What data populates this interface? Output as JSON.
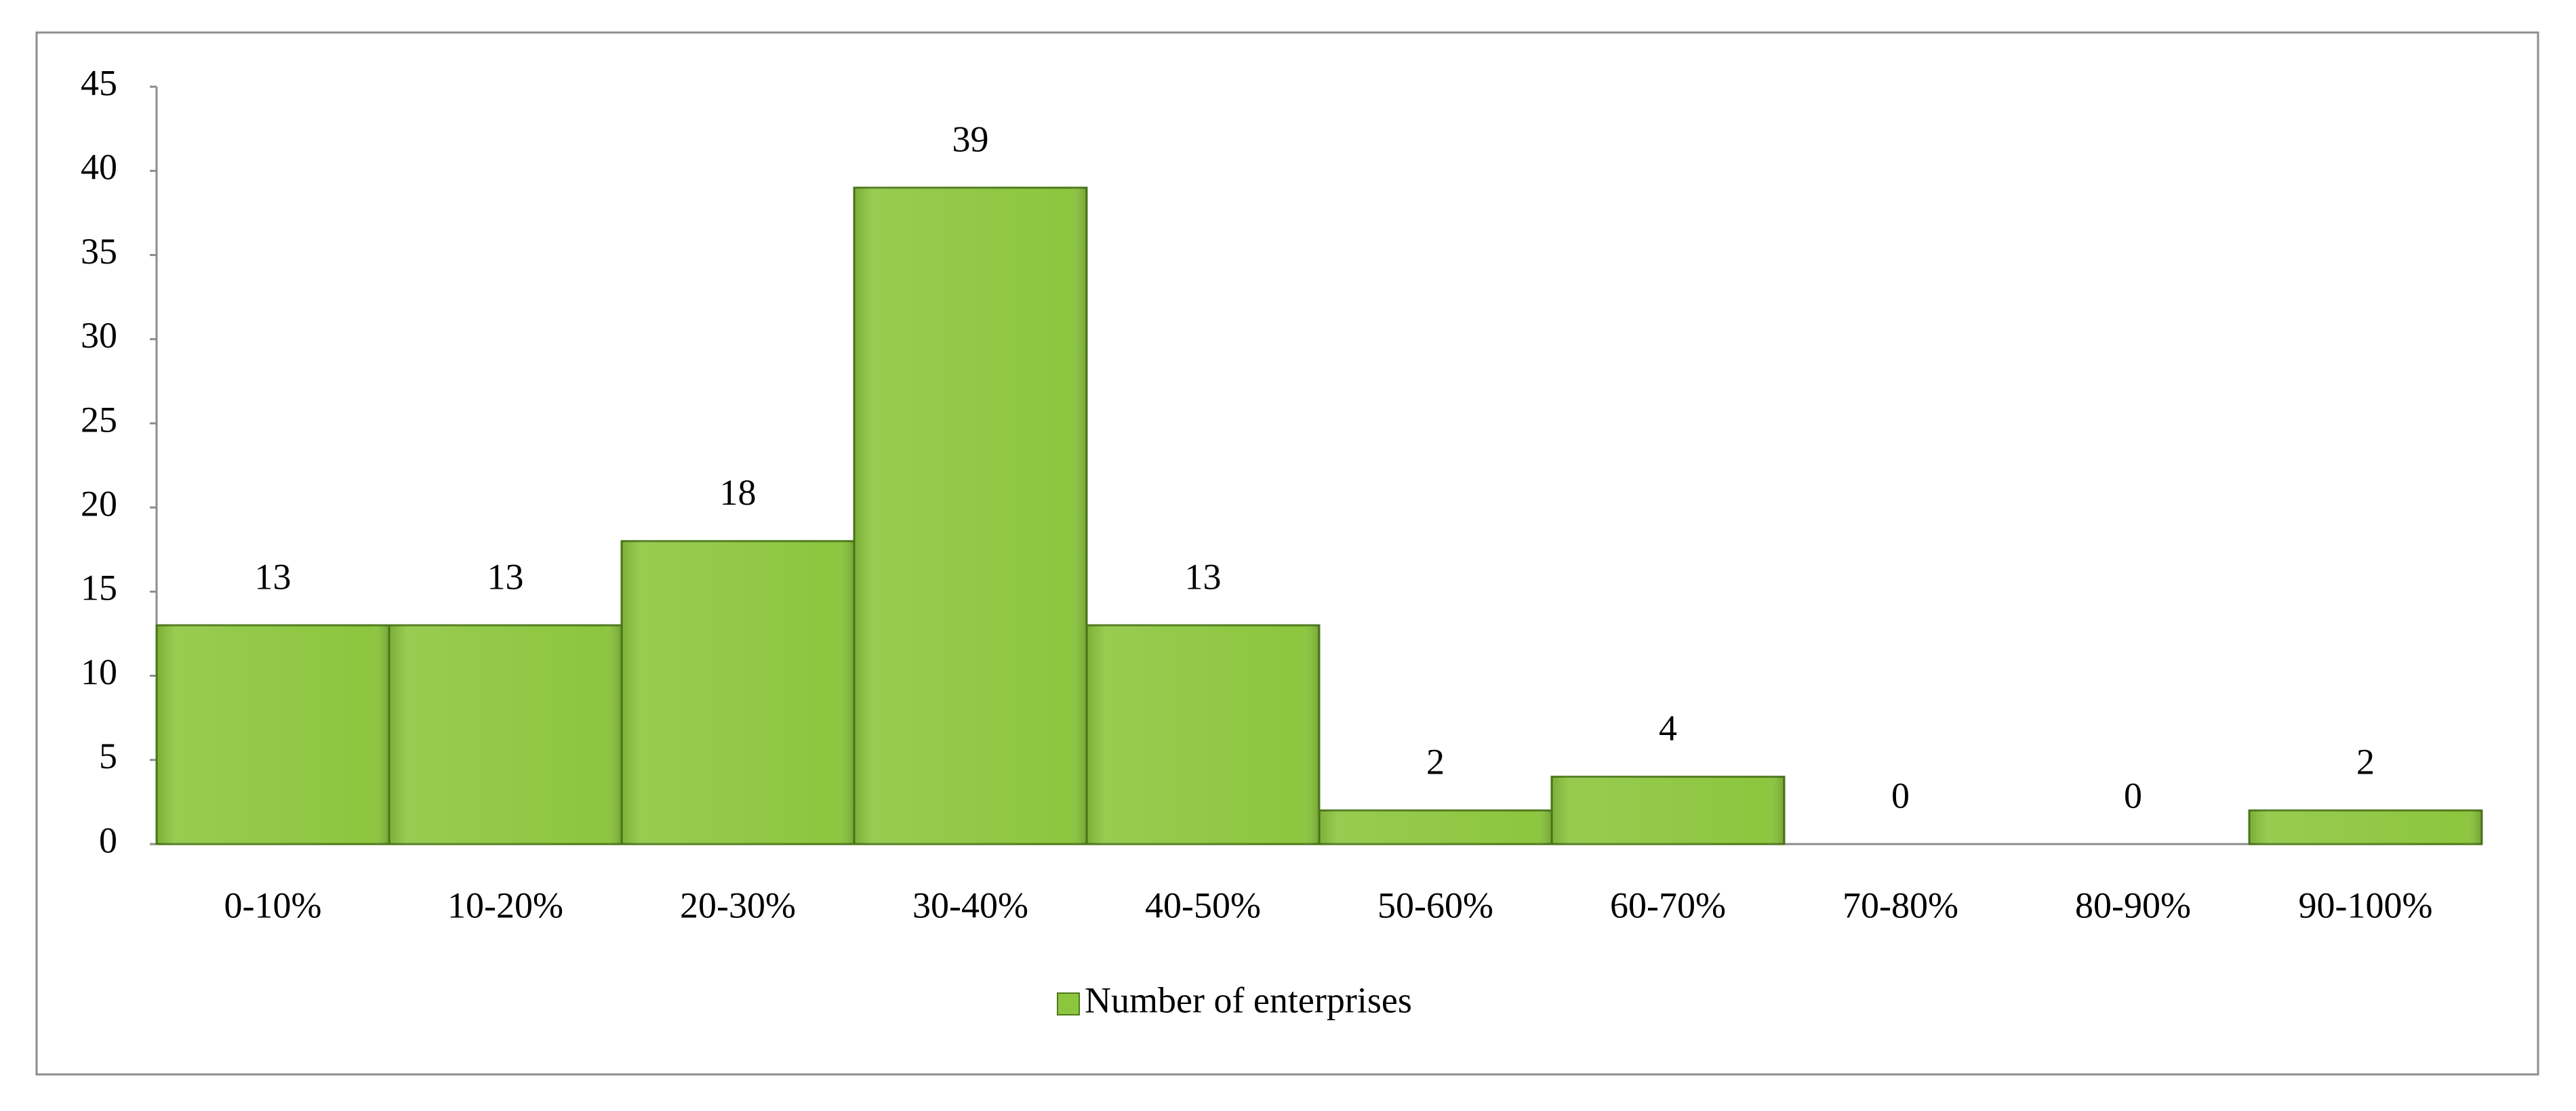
{
  "chart_data": {
    "type": "bar",
    "categories": [
      "0-10%",
      "10-20%",
      "20-30%",
      "30-40%",
      "40-50%",
      "50-60%",
      "60-70%",
      "70-80%",
      "80-90%",
      "90-100%"
    ],
    "series": [
      {
        "name": "Number of enterprises",
        "color": "#8cc63e",
        "values": [
          13,
          13,
          18,
          39,
          13,
          2,
          4,
          0,
          0,
          2
        ]
      }
    ],
    "ylim": [
      0,
      45
    ],
    "yticks": [
      0,
      5,
      10,
      15,
      20,
      25,
      30,
      35,
      40,
      45
    ],
    "grid": false,
    "legend": "bottom"
  }
}
